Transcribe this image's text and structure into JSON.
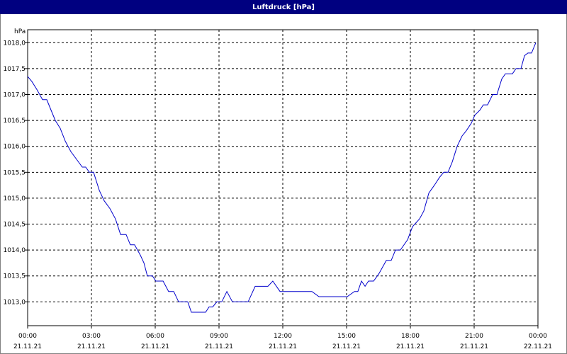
{
  "chart_data": {
    "type": "line",
    "title": "Luftdruck [hPa]",
    "y_label": "hPa",
    "x": [
      0,
      0.2,
      0.43,
      0.7,
      0.9,
      1.1,
      1.3,
      1.53,
      1.77,
      2.03,
      2.3,
      2.57,
      2.73,
      2.9,
      3.1,
      3.37,
      3.6,
      3.87,
      4.13,
      4.37,
      4.63,
      4.83,
      5.03,
      5.3,
      5.47,
      5.63,
      5.87,
      6.03,
      6.37,
      6.63,
      6.87,
      7.1,
      7.53,
      7.7,
      8.37,
      8.53,
      8.7,
      8.9,
      9.13,
      9.37,
      9.63,
      10.37,
      10.7,
      11.3,
      11.53,
      11.87,
      13.37,
      13.7,
      15.03,
      15.37,
      15.53,
      15.7,
      15.87,
      16.03,
      16.27,
      16.53,
      16.87,
      17.1,
      17.3,
      17.53,
      17.87,
      18.1,
      18.43,
      18.63,
      18.87,
      19.13,
      19.37,
      19.57,
      19.77,
      19.97,
      20.2,
      20.43,
      20.63,
      20.87,
      21.03,
      21.27,
      21.43,
      21.63,
      21.87,
      22.07,
      22.3,
      22.47,
      22.8,
      22.97,
      23.2,
      23.37,
      23.53,
      23.7,
      23.9
    ],
    "series": [
      {
        "name": "Luftdruck",
        "color": "#0000cc",
        "values": [
          1017.35,
          1017.25,
          1017.1,
          1016.9,
          1016.9,
          1016.7,
          1016.5,
          1016.35,
          1016.1,
          1015.9,
          1015.75,
          1015.6,
          1015.6,
          1015.5,
          1015.5,
          1015.15,
          1014.95,
          1014.8,
          1014.6,
          1014.3,
          1014.3,
          1014.1,
          1014.1,
          1013.9,
          1013.75,
          1013.5,
          1013.5,
          1013.4,
          1013.4,
          1013.2,
          1013.2,
          1013.0,
          1013.0,
          1012.8,
          1012.8,
          1012.9,
          1012.9,
          1013.0,
          1013.0,
          1013.2,
          1013.0,
          1013.0,
          1013.3,
          1013.3,
          1013.4,
          1013.2,
          1013.2,
          1013.1,
          1013.1,
          1013.2,
          1013.2,
          1013.4,
          1013.3,
          1013.4,
          1013.4,
          1013.55,
          1013.8,
          1013.8,
          1014.0,
          1014.0,
          1014.2,
          1014.45,
          1014.6,
          1014.75,
          1015.1,
          1015.25,
          1015.4,
          1015.5,
          1015.5,
          1015.7,
          1016.0,
          1016.2,
          1016.3,
          1016.45,
          1016.6,
          1016.7,
          1016.8,
          1016.8,
          1017.0,
          1017.0,
          1017.3,
          1017.4,
          1017.4,
          1017.5,
          1017.5,
          1017.75,
          1017.8,
          1017.8,
          1018.0
        ]
      }
    ],
    "xlim": [
      0,
      24
    ],
    "xticks": [
      {
        "value": 0,
        "label": "00:00"
      },
      {
        "value": 3,
        "label": "03:00"
      },
      {
        "value": 6,
        "label": "06:00"
      },
      {
        "value": 9,
        "label": "09:00"
      },
      {
        "value": 12,
        "label": "12:00"
      },
      {
        "value": 15,
        "label": "15:00"
      },
      {
        "value": 18,
        "label": "18:00"
      },
      {
        "value": 21,
        "label": "21:00"
      },
      {
        "value": 24,
        "label": "00:00"
      }
    ],
    "xtick_dates": [
      "21.11.21",
      "21.11.21",
      "21.11.21",
      "21.11.21",
      "21.11.21",
      "21.11.21",
      "21.11.21",
      "21.11.21",
      "22.11.21"
    ],
    "ylim": [
      1012.54,
      1018.25
    ],
    "yticks": [
      {
        "value": 1013,
        "label": "1013,0"
      },
      {
        "value": 1013.5,
        "label": "1013,5"
      },
      {
        "value": 1014,
        "label": "1014,0"
      },
      {
        "value": 1014.5,
        "label": "1014,5"
      },
      {
        "value": 1015,
        "label": "1015,0"
      },
      {
        "value": 1015.5,
        "label": "1015,5"
      },
      {
        "value": 1016,
        "label": "1016,0"
      },
      {
        "value": 1016.5,
        "label": "1016,5"
      },
      {
        "value": 1017,
        "label": "1017,0"
      },
      {
        "value": 1017.5,
        "label": "1017,5"
      },
      {
        "value": 1018,
        "label": "1018,0"
      }
    ],
    "grid": true
  }
}
